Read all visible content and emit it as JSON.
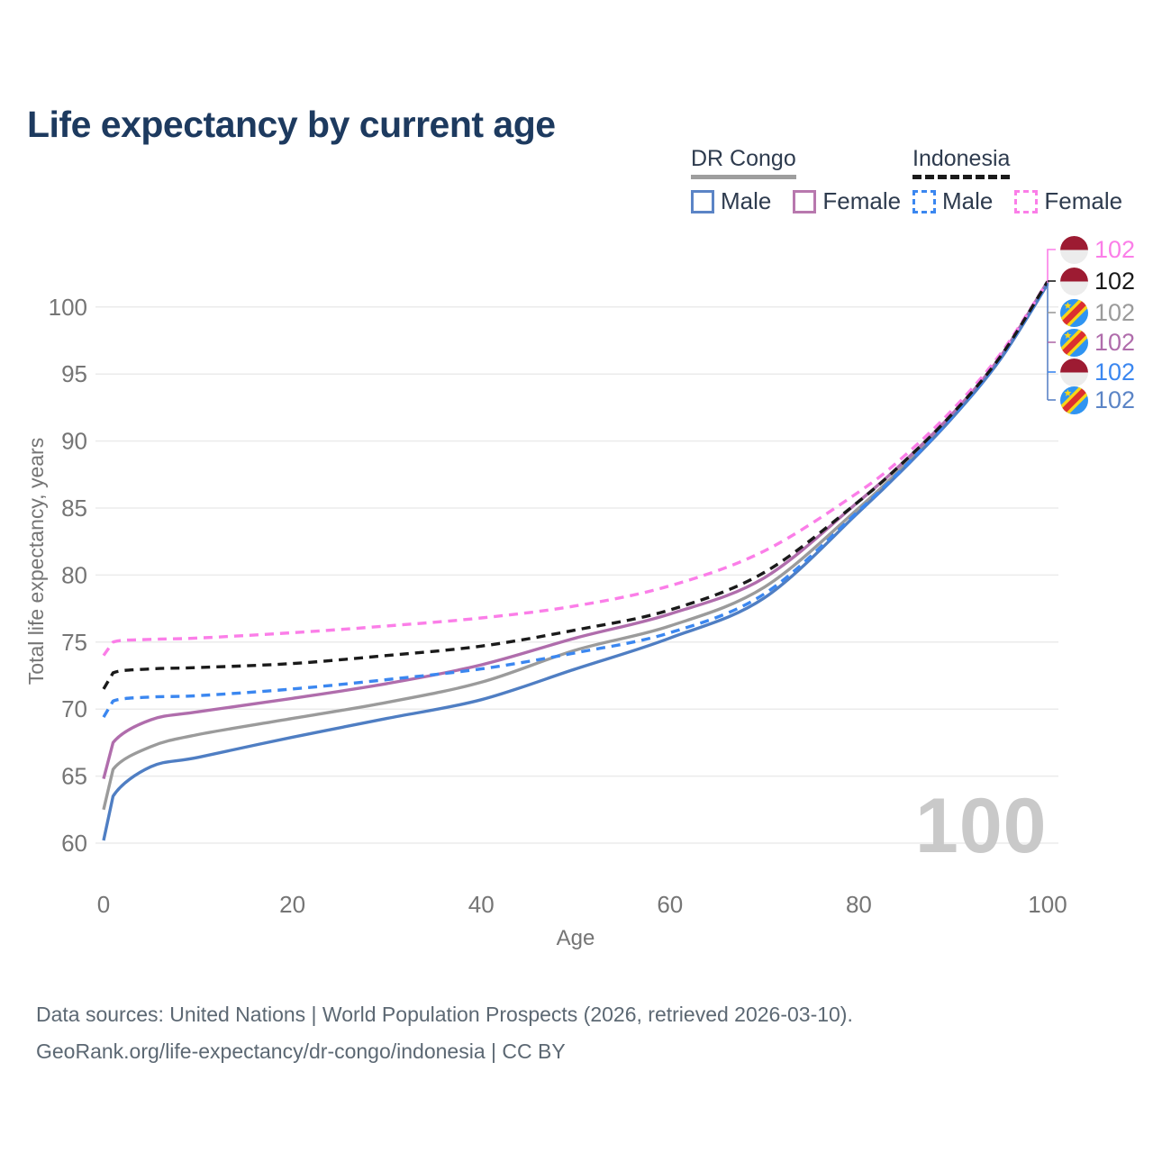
{
  "title": "Life expectancy by current age",
  "watermark": "100",
  "legend": {
    "groups": [
      {
        "label": "DR Congo",
        "line_style": "solid",
        "items": [
          {
            "label": "Male",
            "color": "#5b84c6",
            "dashed": false
          },
          {
            "label": "Female",
            "color": "#b878ae",
            "dashed": false
          }
        ]
      },
      {
        "label": "Indonesia",
        "line_style": "dashed",
        "items": [
          {
            "label": "Male",
            "color": "#3b87f0",
            "dashed": true
          },
          {
            "label": "Female",
            "color": "#fb7ee8",
            "dashed": true
          }
        ]
      }
    ]
  },
  "end_labels": [
    {
      "value": "102",
      "color": "#fb7ee8",
      "flag": "indonesia",
      "series": "Indonesia Female"
    },
    {
      "value": "102",
      "color": "#1a1a1a",
      "flag": "indonesia",
      "series": "Indonesia Both sexes"
    },
    {
      "value": "102",
      "color": "#9b9b9b",
      "flag": "dr-congo",
      "series": "DR Congo Both sexes"
    },
    {
      "value": "102",
      "color": "#b06dac",
      "flag": "dr-congo",
      "series": "DR Congo Female"
    },
    {
      "value": "102",
      "color": "#3b87f0",
      "flag": "indonesia",
      "series": "Indonesia Male"
    },
    {
      "value": "102",
      "color": "#5b84c6",
      "flag": "dr-congo",
      "series": "DR Congo Male"
    }
  ],
  "footer": {
    "line1": "Data sources: United Nations | World Population Prospects (2026, retrieved 2026-03-10).",
    "line2": "GeoRank.org/life-expectancy/dr-congo/indonesia | CC BY"
  },
  "chart_data": {
    "type": "line",
    "title": "Life expectancy by current age",
    "xlabel": "Age",
    "ylabel": "Total life expectancy, years",
    "xlim": [
      0,
      100
    ],
    "ylim": [
      60,
      102
    ],
    "x_ticks": [
      0,
      20,
      40,
      60,
      80,
      100
    ],
    "y_ticks": [
      60,
      65,
      70,
      75,
      80,
      85,
      90,
      95,
      100
    ],
    "grid": "horizontal",
    "legend_position": "top-right",
    "x": [
      0,
      1,
      5,
      10,
      20,
      30,
      40,
      50,
      60,
      70,
      80,
      85,
      90,
      95,
      100
    ],
    "series": [
      {
        "name": "DR Congo Both sexes",
        "color": "#9b9b9b",
        "dashed": false,
        "values": [
          62.5,
          65.5,
          67.2,
          68.1,
          69.3,
          70.5,
          72.0,
          74.4,
          76.2,
          79.1,
          85.0,
          88.3,
          91.9,
          96.2,
          101.8
        ]
      },
      {
        "name": "DR Congo Female",
        "color": "#b06dac",
        "dashed": false,
        "values": [
          64.8,
          67.5,
          69.2,
          69.8,
          70.8,
          71.9,
          73.3,
          75.3,
          77.1,
          79.8,
          85.5,
          88.6,
          92.1,
          96.3,
          101.9
        ]
      },
      {
        "name": "DR Congo Male",
        "color": "#4f7ec3",
        "dashed": false,
        "values": [
          60.2,
          63.5,
          65.7,
          66.4,
          67.9,
          69.3,
          70.7,
          73.0,
          75.3,
          78.3,
          84.7,
          88.1,
          91.8,
          96.1,
          101.7
        ]
      },
      {
        "name": "Indonesia Female",
        "color": "#fb7ee8",
        "dashed": true,
        "values": [
          74.0,
          75.0,
          75.2,
          75.3,
          75.7,
          76.2,
          76.8,
          77.7,
          79.2,
          81.8,
          86.2,
          89.0,
          92.4,
          96.5,
          101.9
        ]
      },
      {
        "name": "Indonesia Male",
        "color": "#3b87f0",
        "dashed": true,
        "values": [
          69.4,
          70.6,
          70.9,
          71.0,
          71.5,
          72.2,
          73.0,
          74.2,
          75.7,
          78.6,
          84.8,
          88.2,
          91.9,
          96.2,
          101.8
        ]
      },
      {
        "name": "Indonesia Both sexes",
        "color": "#1a1a1a",
        "dashed": true,
        "values": [
          71.5,
          72.7,
          73.0,
          73.1,
          73.4,
          74.0,
          74.7,
          75.9,
          77.4,
          80.2,
          85.5,
          88.6,
          92.1,
          96.3,
          101.9
        ]
      }
    ]
  }
}
